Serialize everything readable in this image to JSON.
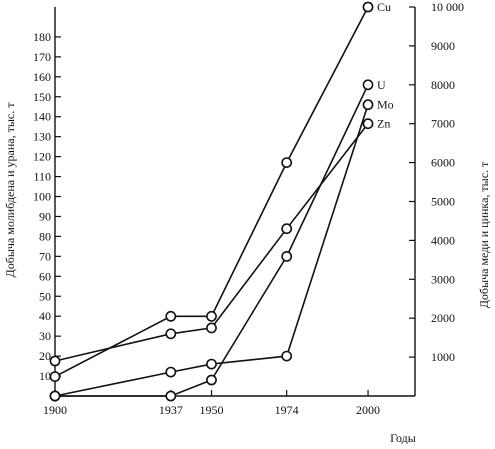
{
  "chart_data": {
    "type": "line",
    "xlabel": "Годы",
    "ylabel_left": "Добыча молибдена и урана, тыс. т",
    "ylabel_right": "Добыча меди и цинка, тыс. т",
    "x_ticks": [
      "1900",
      "1937",
      "1950",
      "1974",
      "2000"
    ],
    "xlim": [
      1900,
      2015
    ],
    "ylim_left": [
      0,
      195
    ],
    "ylim_right": [
      0,
      10000
    ],
    "left_ticks": [
      "10",
      "20",
      "30",
      "40",
      "50",
      "60",
      "70",
      "80",
      "90",
      "100",
      "110",
      "120",
      "130",
      "140",
      "150",
      "160",
      "170",
      "180"
    ],
    "right_ticks": [
      "1000",
      "2000",
      "3000",
      "4000",
      "5000",
      "6000",
      "7000",
      "8000",
      "9000",
      "10 000"
    ],
    "series": [
      {
        "name": "Cu",
        "axis": "right",
        "x": [
          1900,
          1937,
          1950,
          1974,
          2000
        ],
        "y": [
          500,
          2050,
          2050,
          6000,
          10000
        ]
      },
      {
        "name": "U",
        "axis": "left",
        "x": [
          1900,
          1937,
          1950,
          1974,
          2000
        ],
        "y": [
          0,
          0,
          8,
          70,
          156
        ]
      },
      {
        "name": "Mo",
        "axis": "left",
        "x": [
          1900,
          1937,
          1950,
          1974,
          2000
        ],
        "y": [
          0,
          12,
          16,
          20,
          146
        ]
      },
      {
        "name": "Zn",
        "axis": "right",
        "x": [
          1900,
          1937,
          1950,
          1974,
          2000
        ],
        "y": [
          900,
          1600,
          1750,
          4300,
          7000
        ]
      }
    ]
  }
}
